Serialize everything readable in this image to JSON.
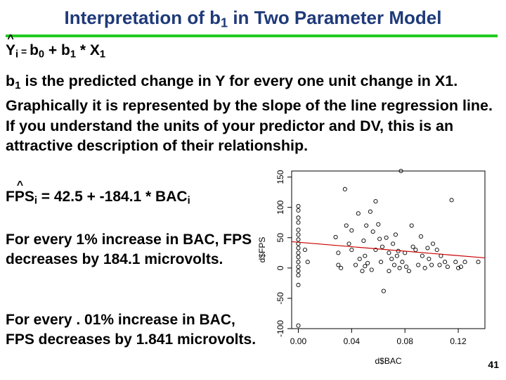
{
  "slide": {
    "title_main": "Interpretation of b",
    "title_sub": "1",
    "title_tail": " in Two Parameter Model",
    "page_number": "41"
  },
  "model_equation": {
    "caret": "^",
    "y": "Y",
    "y_sub": "i",
    "eq": " = ",
    "b0": "b",
    "b0_sub": "0",
    "plus": " + ",
    "b1": "b",
    "b1_sub": "1",
    "times": " * X",
    "x_sub": "1"
  },
  "description": {
    "b_label": "b",
    "b_sub": "1",
    "text": " is the predicted change in Y for every one unit change in X1.  Graphically it is represented by the slope of the line regression line.  If you understand the units of your predictor and DV, this is an attractive description of their relationship."
  },
  "fitted_equation": {
    "caret": "^",
    "lhs": "FPS",
    "lhs_sub": "i",
    "rhs": " = 42.5 + -184.1 * BAC",
    "rhs_sub": "i"
  },
  "note_one": "For every 1% increase in BAC, FPS decreases by 184.1 microvolts.",
  "note_two": "For every . 01% increase in BAC, FPS decreases by 1.841 microvolts.",
  "chart_data": {
    "type": "scatter",
    "xlabel": "d$BAC",
    "ylabel": "d$FPS",
    "xlim": [
      -0.005,
      0.14
    ],
    "ylim": [
      -100,
      160
    ],
    "x_ticks": [
      0.0,
      0.04,
      0.08,
      0.12
    ],
    "x_tick_labels": [
      "0.00",
      "0.04",
      "0.08",
      "0.12"
    ],
    "y_ticks": [
      -100,
      -50,
      0,
      50,
      100,
      150
    ],
    "y_tick_labels": [
      "-100",
      "-50",
      "0",
      "50",
      "100",
      "150"
    ],
    "regression_line": {
      "intercept": 42.5,
      "slope": -184.1,
      "color": "#cc0000"
    },
    "points": [
      [
        0,
        102
      ],
      [
        0,
        95
      ],
      [
        0,
        83
      ],
      [
        0,
        75
      ],
      [
        0,
        63
      ],
      [
        0,
        55
      ],
      [
        0,
        47
      ],
      [
        0,
        40
      ],
      [
        0,
        33
      ],
      [
        0,
        25
      ],
      [
        0,
        18
      ],
      [
        0,
        10
      ],
      [
        0,
        2
      ],
      [
        0,
        -5
      ],
      [
        0,
        -12
      ],
      [
        0,
        -28
      ],
      [
        0,
        -95
      ],
      [
        0.005,
        30
      ],
      [
        0.007,
        10
      ],
      [
        0.028,
        51
      ],
      [
        0.03,
        25
      ],
      [
        0.03,
        5
      ],
      [
        0.032,
        0
      ],
      [
        0.035,
        130
      ],
      [
        0.036,
        70
      ],
      [
        0.038,
        40
      ],
      [
        0.04,
        30
      ],
      [
        0.04,
        62
      ],
      [
        0.043,
        5
      ],
      [
        0.045,
        90
      ],
      [
        0.046,
        15
      ],
      [
        0.048,
        -5
      ],
      [
        0.049,
        45
      ],
      [
        0.05,
        20
      ],
      [
        0.05,
        3
      ],
      [
        0.051,
        70
      ],
      [
        0.052,
        8
      ],
      [
        0.054,
        93
      ],
      [
        0.055,
        -3
      ],
      [
        0.056,
        60
      ],
      [
        0.058,
        110
      ],
      [
        0.058,
        30
      ],
      [
        0.06,
        72
      ],
      [
        0.061,
        48
      ],
      [
        0.062,
        10
      ],
      [
        0.063,
        35
      ],
      [
        0.064,
        -38
      ],
      [
        0.066,
        50
      ],
      [
        0.068,
        25
      ],
      [
        0.068,
        -5
      ],
      [
        0.07,
        15
      ],
      [
        0.071,
        40
      ],
      [
        0.072,
        5
      ],
      [
        0.073,
        55
      ],
      [
        0.074,
        20
      ],
      [
        0.075,
        28
      ],
      [
        0.076,
        0
      ],
      [
        0.077,
        160
      ],
      [
        0.078,
        10
      ],
      [
        0.08,
        25
      ],
      [
        0.081,
        2
      ],
      [
        0.083,
        -5
      ],
      [
        0.085,
        70
      ],
      [
        0.086,
        35
      ],
      [
        0.088,
        30
      ],
      [
        0.09,
        5
      ],
      [
        0.092,
        52
      ],
      [
        0.093,
        20
      ],
      [
        0.095,
        0
      ],
      [
        0.097,
        33
      ],
      [
        0.098,
        15
      ],
      [
        0.1,
        5
      ],
      [
        0.101,
        40
      ],
      [
        0.104,
        30
      ],
      [
        0.106,
        5
      ],
      [
        0.107,
        20
      ],
      [
        0.11,
        10
      ],
      [
        0.112,
        2
      ],
      [
        0.115,
        112
      ],
      [
        0.118,
        10
      ],
      [
        0.12,
        0
      ],
      [
        0.122,
        2
      ],
      [
        0.125,
        10
      ],
      [
        0.135,
        10
      ]
    ]
  }
}
